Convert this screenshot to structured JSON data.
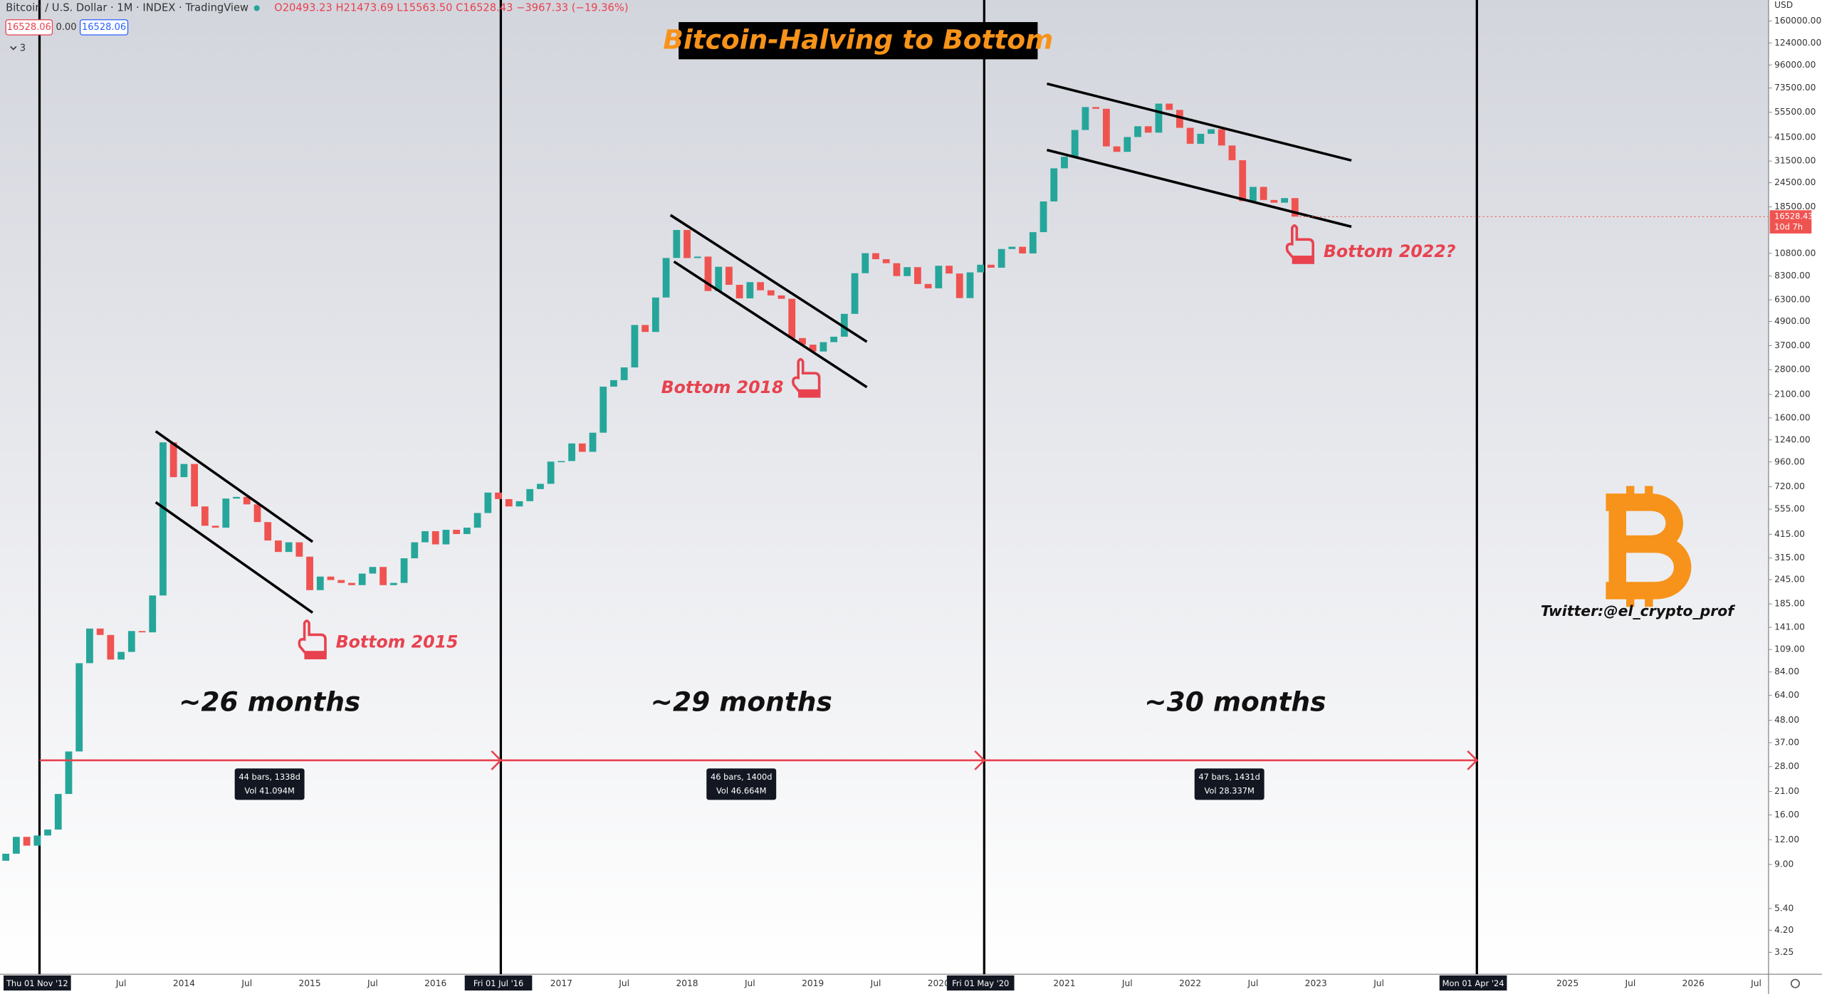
{
  "header": {
    "symbol": "Bitcoin / U.S. Dollar · 1M · INDEX · TradingView",
    "ohlc": "O20493.23 H21473.69 L15563.50 C16528.43 −3967.33 (−19.36%)",
    "bid": "16528.06",
    "spread": "0.00",
    "ask": "16528.06",
    "indicators": "3"
  },
  "chart_data": {
    "type": "candlestick",
    "title": "Bitcoin-Halving to Bottom",
    "log_scale": true,
    "up_color": "#26a69a",
    "down_color": "#ef5350",
    "open": 9.4,
    "close": [
      10.2,
      12.4,
      11.2,
      12.6,
      13.5,
      20.4,
      33.4,
      93,
      139,
      129,
      97,
      106,
      135,
      133,
      204,
      1205,
      805,
      938,
      573,
      458,
      448,
      628,
      640,
      587,
      478,
      386,
      338,
      378,
      320,
      217,
      254,
      244,
      236,
      230,
      263,
      284,
      230,
      236,
      314,
      378,
      430,
      369,
      437,
      416,
      448,
      531,
      673,
      624,
      573,
      609,
      701,
      745,
      964,
      970,
      1190,
      1080,
      1348,
      2300,
      2480,
      2875,
      4703,
      4338,
      6468,
      10233,
      14156,
      10221,
      10397,
      6973,
      9240,
      7494,
      6404,
      7730,
      7033,
      6626,
      6372,
      4041,
      3742,
      3457,
      3854,
      4105,
      5350,
      8574,
      10817,
      10085,
      9630,
      8293,
      9199,
      7569,
      7194,
      9350,
      8544,
      6424,
      8658,
      9462,
      9138,
      11351,
      11655,
      10784,
      13804,
      19714,
      28949,
      33114,
      45137,
      58918,
      57750,
      37332,
      35041,
      41626,
      47167,
      43791,
      61318,
      57005,
      46306,
      38483,
      43193,
      45538,
      37714,
      31792,
      19785,
      23336,
      20050,
      19431,
      20495,
      16528
    ],
    "ylim": [
      2.52,
      204000
    ],
    "y_unit": "USD",
    "yticks": [
      3.25,
      {
        "value": 4.2,
        "label": "4.20"
      },
      {
        "value": 5.4,
        "label": "5.40"
      },
      {
        "value": 9,
        "label": "9.00"
      },
      {
        "value": 12,
        "label": "12.00"
      },
      {
        "value": 16,
        "label": "16.00"
      },
      {
        "value": 21,
        "label": "21.00"
      },
      {
        "value": 28,
        "label": "28.00"
      },
      {
        "value": 37,
        "label": "37.00"
      },
      {
        "value": 48,
        "label": "48.00"
      },
      {
        "value": 64,
        "label": "64.00"
      },
      {
        "value": 84,
        "label": "84.00"
      },
      {
        "value": 109,
        "label": "109.00"
      },
      {
        "value": 141,
        "label": "141.00"
      },
      {
        "value": 185,
        "label": "185.00"
      },
      {
        "value": 245,
        "label": "245.00"
      },
      {
        "value": 315,
        "label": "315.00"
      },
      {
        "value": 415,
        "label": "415.00"
      },
      {
        "value": 555,
        "label": "555.00"
      },
      {
        "value": 720,
        "label": "720.00"
      },
      {
        "value": 960,
        "label": "960.00"
      },
      {
        "value": 1240,
        "label": "1240.00"
      },
      {
        "value": 1600,
        "label": "1600.00"
      },
      {
        "value": 2100,
        "label": "2100.00"
      },
      {
        "value": 2800,
        "label": "2800.00"
      },
      {
        "value": 3700,
        "label": "3700.00"
      },
      {
        "value": 4900,
        "label": "4900.00"
      },
      {
        "value": 6300,
        "label": "6300.00"
      },
      {
        "value": 8300,
        "label": "8300.00"
      },
      {
        "value": 10800,
        "label": "10800.00"
      },
      {
        "value": 18500,
        "label": "18500.00"
      },
      {
        "value": 24500,
        "label": "24500.00"
      },
      {
        "value": 31500,
        "label": "31500.00"
      },
      {
        "value": 41500,
        "label": "41500.00"
      },
      {
        "value": 55500,
        "label": "55500.00"
      },
      {
        "value": 73500,
        "label": "73500.00"
      },
      {
        "value": 96000,
        "label": "96000.00"
      },
      {
        "value": 124000,
        "label": "124000.00"
      },
      {
        "value": 160000,
        "label": "160000.00"
      }
    ],
    "xticks": [
      "Thu 01 Nov '12",
      "Jul",
      "2014",
      "Jul",
      "2015",
      "Jul",
      "2016",
      "Fri 01 Jul '16",
      "2017",
      "Jul",
      "2018",
      "Jul",
      "2019",
      "Jul",
      "2020",
      "Fri 01 May '20",
      "2021",
      "Jul",
      "2022",
      "Jul",
      "2023",
      "Jul",
      "Mon 01 Apr '24",
      "2025",
      "Jul",
      "2026",
      "Jul"
    ],
    "last_price": 16528.43,
    "countdown": "10d 7h",
    "bottoms": [
      "Bottom 2015",
      "Bottom 2018",
      "Bottom 2022?"
    ],
    "cycles": [
      {
        "duration": "~26 months",
        "bars": "44 bars, 1338d",
        "volume": "Vol 41.094M"
      },
      {
        "duration": "~29 months",
        "bars": "46 bars, 1400d",
        "volume": "Vol 46.664M"
      },
      {
        "duration": "~30 months",
        "bars": "47 bars, 1431d",
        "volume": "Vol 28.337M"
      }
    ],
    "credit": "Twitter:@el_crypto_prof"
  }
}
